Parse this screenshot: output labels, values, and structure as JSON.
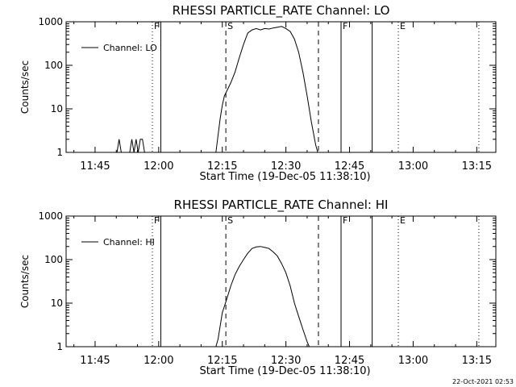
{
  "footer": {
    "timestamp": "22-Oct-2021 02:53"
  },
  "chart_data": [
    {
      "type": "line",
      "title": "RHESSI PARTICLE_RATE Channel: LO",
      "xlabel": "Start Time (19-Dec-05 11:38:10)",
      "ylabel": "Counts/sec",
      "yscale": "log",
      "ylim": [
        1,
        1000
      ],
      "xlim": [
        "11:38:10",
        "13:19:30"
      ],
      "xticks": [
        "11:45",
        "12:00",
        "12:15",
        "12:30",
        "12:45",
        "13:00",
        "13:15"
      ],
      "yticks": [
        "1",
        "10",
        "100",
        "1000"
      ],
      "legend": {
        "position": "top-left",
        "entries": [
          "Channel: LO"
        ]
      },
      "series": [
        {
          "name": "Channel: LO",
          "color": "#000000",
          "x": [
            "11:50:10",
            "11:50:40",
            "11:51:10",
            "11:53:10",
            "11:53:40",
            "11:54:10",
            "11:54:40",
            "11:55:10",
            "11:55:40",
            "11:56:10",
            "11:56:40",
            "11:57:10",
            "12:13:30",
            "12:14:00",
            "12:14:30",
            "12:15:00",
            "12:15:30",
            "12:16:00",
            "12:17:00",
            "12:18:00",
            "12:19:00",
            "12:20:00",
            "12:21:00",
            "12:22:00",
            "12:23:00",
            "12:24:00",
            "12:25:00",
            "12:26:00",
            "12:27:00",
            "12:28:00",
            "12:29:00",
            "12:30:00",
            "12:31:00",
            "12:32:00",
            "12:33:00",
            "12:34:00",
            "12:35:00",
            "12:36:00",
            "12:37:00",
            "12:37:30"
          ],
          "y": [
            1,
            2,
            1,
            1,
            2,
            1,
            2,
            1,
            2,
            2,
            1,
            1,
            1,
            2.5,
            6,
            12,
            20,
            25,
            40,
            70,
            150,
            300,
            550,
            650,
            700,
            650,
            700,
            680,
            720,
            750,
            780,
            700,
            600,
            400,
            200,
            70,
            20,
            5,
            1.5,
            1
          ]
        }
      ],
      "markers": [
        {
          "label": "F",
          "time": "11:58:30",
          "style": "dotted"
        },
        {
          "label": "",
          "time": "12:00:30",
          "style": "solid"
        },
        {
          "label": "S",
          "time": "12:15:50",
          "style": "dashed"
        },
        {
          "label": "",
          "time": "12:37:40",
          "style": "dashed"
        },
        {
          "label": "F",
          "time": "12:43:00",
          "style": "solid"
        },
        {
          "label": "",
          "time": "12:50:20",
          "style": "solid"
        },
        {
          "label": "E",
          "time": "12:56:30",
          "style": "dotted"
        },
        {
          "label": "",
          "time": "13:15:30",
          "style": "dotted"
        }
      ]
    },
    {
      "type": "line",
      "title": "RHESSI PARTICLE_RATE Channel: HI",
      "xlabel": "Start Time (19-Dec-05 11:38:10)",
      "ylabel": "Counts/sec",
      "yscale": "log",
      "ylim": [
        1,
        1000
      ],
      "xlim": [
        "11:38:10",
        "13:19:30"
      ],
      "xticks": [
        "11:45",
        "12:00",
        "12:15",
        "12:30",
        "12:45",
        "13:00",
        "13:15"
      ],
      "yticks": [
        "1",
        "10",
        "100",
        "1000"
      ],
      "legend": {
        "position": "top-left",
        "entries": [
          "Channel: HI"
        ]
      },
      "series": [
        {
          "name": "Channel: HI",
          "color": "#000000",
          "x": [
            "12:13:30",
            "12:14:00",
            "12:14:30",
            "12:15:00",
            "12:16:00",
            "12:17:00",
            "12:18:00",
            "12:19:00",
            "12:20:00",
            "12:21:00",
            "12:22:00",
            "12:23:00",
            "12:24:00",
            "12:25:00",
            "12:26:00",
            "12:27:00",
            "12:28:00",
            "12:29:00",
            "12:30:00",
            "12:31:00",
            "12:32:00",
            "12:33:00",
            "12:34:00",
            "12:35:00",
            "12:35:30"
          ],
          "y": [
            1,
            1.5,
            3,
            6,
            12,
            25,
            45,
            70,
            100,
            140,
            180,
            195,
            200,
            190,
            180,
            150,
            120,
            80,
            50,
            25,
            10,
            5,
            2.5,
            1.3,
            1
          ]
        }
      ],
      "markers": [
        {
          "label": "F",
          "time": "11:58:30",
          "style": "dotted"
        },
        {
          "label": "",
          "time": "12:00:30",
          "style": "solid"
        },
        {
          "label": "S",
          "time": "12:15:50",
          "style": "dashed"
        },
        {
          "label": "",
          "time": "12:37:40",
          "style": "dashed"
        },
        {
          "label": "F",
          "time": "12:43:00",
          "style": "solid"
        },
        {
          "label": "",
          "time": "12:50:20",
          "style": "solid"
        },
        {
          "label": "E",
          "time": "12:56:30",
          "style": "dotted"
        },
        {
          "label": "",
          "time": "13:15:30",
          "style": "dotted"
        }
      ]
    }
  ]
}
